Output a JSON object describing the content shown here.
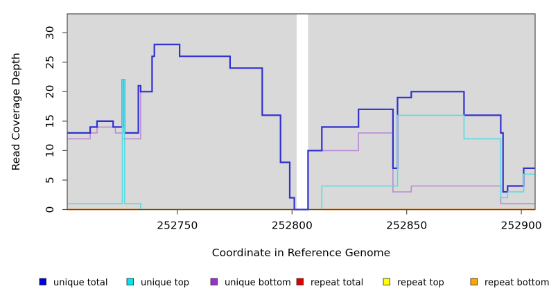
{
  "figure": {
    "background": "#ffffff"
  },
  "chart_data": {
    "type": "line",
    "subtype": "step-coverage",
    "title": "",
    "xlabel": "Coordinate in Reference Genome",
    "ylabel": "Read Coverage Depth",
    "xlim": [
      252702,
      252906
    ],
    "ylim": [
      0,
      33.2
    ],
    "xticks": [
      252750,
      252800,
      252850,
      252900
    ],
    "yticks": [
      0,
      5,
      10,
      15,
      20,
      25,
      30
    ],
    "grid": false,
    "legend_position": "bottom",
    "plot_background": "#d9d9d9",
    "axis_color": "#4d4d4d",
    "no_data_band": {
      "from": 252802,
      "to": 252807,
      "color": "#ffffff"
    },
    "zero_coverage_color": "#9cd59c",
    "zero_coverage_segments": [
      {
        "from": 252734,
        "to": 252802
      },
      {
        "from": 252807,
        "to": 252813
      }
    ],
    "series": [
      {
        "name": "unique total",
        "line_color": "#3030d0",
        "legend_color": "#0000e0",
        "paths": [
          {
            "steps": [
              [
                252702,
                13
              ],
              [
                252712,
                14
              ],
              [
                252715,
                15
              ],
              [
                252722,
                14
              ],
              [
                252726,
                22
              ],
              [
                252727,
                13
              ],
              [
                252733,
                21
              ],
              [
                252734,
                20
              ],
              [
                252739,
                26
              ],
              [
                252740,
                28
              ],
              [
                252751,
                26
              ],
              [
                252773,
                24
              ],
              [
                252787,
                16
              ],
              [
                252795,
                8
              ],
              [
                252799,
                2
              ],
              [
                252801,
                0
              ],
              [
                252807,
                10
              ],
              [
                252813,
                14
              ],
              [
                252829,
                17
              ],
              [
                252844,
                7
              ],
              [
                252846,
                19
              ],
              [
                252852,
                20
              ],
              [
                252875,
                16
              ],
              [
                252891,
                13
              ],
              [
                252892,
                3
              ],
              [
                252894,
                4
              ],
              [
                252901,
                7
              ]
            ],
            "end": 252906
          }
        ]
      },
      {
        "name": "unique top",
        "line_color": "#55dbe3",
        "legend_color": "#00e5ee",
        "paths": [
          {
            "steps": [
              [
                252702,
                1
              ],
              [
                252726,
                22
              ],
              [
                252727,
                1
              ],
              [
                252734,
                0
              ]
            ],
            "end": 252734
          },
          {
            "steps": [
              [
                252813,
                0
              ],
              [
                252813,
                4
              ],
              [
                252846,
                16
              ],
              [
                252875,
                12
              ],
              [
                252891,
                2
              ],
              [
                252894,
                3
              ],
              [
                252901,
                6
              ]
            ],
            "end": 252906
          }
        ]
      },
      {
        "name": "unique bottom",
        "line_color": "#b98ad8",
        "legend_color": "#9932cc",
        "paths": [
          {
            "steps": [
              [
                252702,
                12
              ],
              [
                252712,
                13
              ],
              [
                252715,
                14
              ],
              [
                252723,
                13
              ],
              [
                252726,
                12
              ],
              [
                252734,
                20
              ],
              [
                252739,
                26
              ],
              [
                252740,
                28
              ],
              [
                252751,
                26
              ],
              [
                252773,
                24
              ],
              [
                252787,
                16
              ],
              [
                252795,
                8
              ],
              [
                252799,
                2
              ],
              [
                252801,
                0
              ],
              [
                252807,
                10
              ],
              [
                252829,
                13
              ],
              [
                252844,
                3
              ],
              [
                252852,
                4
              ],
              [
                252891,
                1
              ]
            ],
            "end": 252906
          }
        ]
      },
      {
        "name": "repeat total",
        "line_color": "#e00000",
        "legend_color": "#e00000",
        "paths": [
          {
            "steps": [
              [
                252702,
                0
              ]
            ],
            "end": 252906
          }
        ]
      },
      {
        "name": "repeat top",
        "line_color": "#ffff00",
        "legend_color": "#ffff00",
        "paths": [
          {
            "steps": [
              [
                252702,
                0
              ]
            ],
            "end": 252906
          }
        ]
      },
      {
        "name": "repeat bottom",
        "line_color": "#ff9000",
        "legend_color": "#ffa500",
        "paths": [
          {
            "steps": [
              [
                252702,
                0
              ]
            ],
            "end": 252734
          },
          {
            "steps": [
              [
                252813,
                0
              ]
            ],
            "end": 252906
          }
        ]
      }
    ]
  }
}
